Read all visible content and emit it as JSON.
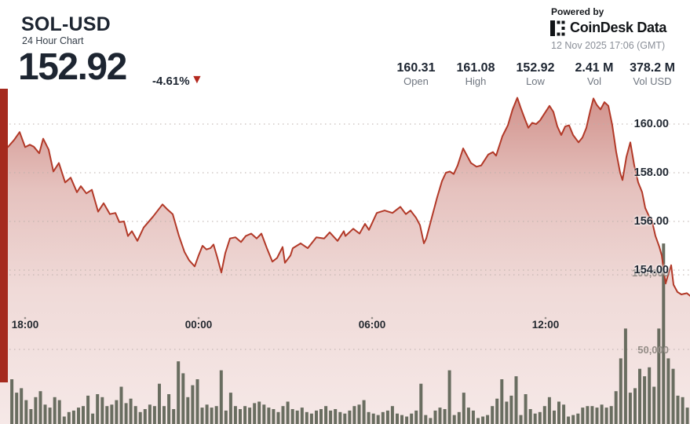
{
  "header": {
    "symbol": "SOL-USD",
    "subtitle": "24 Hour Chart",
    "price": "152.92",
    "change": "-4.61%",
    "down_arrow": "▼",
    "powered_by": "Powered by",
    "brand": "CoinDesk Data",
    "timestamp": "12 Nov 2025 17:06 (GMT)"
  },
  "stats": [
    {
      "value": "160.31",
      "label": "Open"
    },
    {
      "value": "161.08",
      "label": "High"
    },
    {
      "value": "152.92",
      "label": "Low"
    },
    {
      "value": "2.41 M",
      "label": "Vol"
    },
    {
      "value": "378.2 M",
      "label": "Vol USD"
    }
  ],
  "colors": {
    "dark_navy": "#1d2531",
    "line_red": "#b23928",
    "fill_red": "#a93226",
    "marker_red": "#a52a1e",
    "arrow_red": "#b3281e",
    "volume_bar": "#5e6355",
    "grid": "#b9aeaa",
    "gray_text": "#6f7680"
  },
  "chart_data": {
    "type": "area",
    "title": "SOL-USD 24 Hour Chart",
    "open": 160.31,
    "high": 161.08,
    "low": 152.92,
    "last": 152.92,
    "change_pct": -4.61,
    "volume": "2.41 M",
    "volume_usd": "378.2 M",
    "x_ticks": [
      "18:00",
      "00:00",
      "06:00",
      "12:00"
    ],
    "price_axis_labels": [
      "160.00",
      "158.00",
      "156.00",
      "154.00"
    ],
    "price_gridlines": [
      160,
      158,
      156,
      154
    ],
    "volume_axis_labels": [
      "100,000",
      "50,000"
    ],
    "volume_gridlines": [
      100000,
      50000
    ],
    "price_ylim": [
      152.5,
      161.5
    ],
    "volume_ylim": [
      0,
      125000
    ],
    "legend": "none",
    "grid": "dotted",
    "price_series": [
      [
        0,
        159.0
      ],
      [
        10,
        159.05
      ],
      [
        18,
        159.35
      ],
      [
        25,
        159.67
      ],
      [
        32,
        159.05
      ],
      [
        38,
        159.15
      ],
      [
        43,
        159.07
      ],
      [
        50,
        158.8
      ],
      [
        55,
        159.4
      ],
      [
        62,
        158.95
      ],
      [
        68,
        158.05
      ],
      [
        75,
        158.4
      ],
      [
        83,
        157.6
      ],
      [
        90,
        157.8
      ],
      [
        98,
        157.2
      ],
      [
        103,
        157.45
      ],
      [
        110,
        157.15
      ],
      [
        117,
        157.3
      ],
      [
        125,
        156.4
      ],
      [
        132,
        156.75
      ],
      [
        140,
        156.3
      ],
      [
        147,
        156.35
      ],
      [
        152,
        155.97
      ],
      [
        158,
        156.0
      ],
      [
        163,
        155.4
      ],
      [
        168,
        155.6
      ],
      [
        175,
        155.2
      ],
      [
        183,
        155.75
      ],
      [
        195,
        156.2
      ],
      [
        207,
        156.7
      ],
      [
        213,
        156.5
      ],
      [
        220,
        156.3
      ],
      [
        228,
        155.4
      ],
      [
        235,
        154.75
      ],
      [
        241,
        154.4
      ],
      [
        248,
        154.15
      ],
      [
        253,
        154.6
      ],
      [
        258,
        155.0
      ],
      [
        263,
        154.85
      ],
      [
        268,
        154.9
      ],
      [
        272,
        155.05
      ],
      [
        277,
        154.5
      ],
      [
        282,
        153.9
      ],
      [
        287,
        154.7
      ],
      [
        293,
        155.3
      ],
      [
        300,
        155.35
      ],
      [
        307,
        155.15
      ],
      [
        313,
        155.4
      ],
      [
        320,
        155.5
      ],
      [
        327,
        155.3
      ],
      [
        333,
        155.5
      ],
      [
        340,
        154.9
      ],
      [
        347,
        154.35
      ],
      [
        353,
        154.5
      ],
      [
        360,
        154.95
      ],
      [
        363,
        154.3
      ],
      [
        370,
        154.6
      ],
      [
        373,
        154.9
      ],
      [
        383,
        155.1
      ],
      [
        392,
        154.9
      ],
      [
        403,
        155.35
      ],
      [
        413,
        155.3
      ],
      [
        420,
        155.55
      ],
      [
        430,
        155.2
      ],
      [
        438,
        155.6
      ],
      [
        440,
        155.4
      ],
      [
        450,
        155.7
      ],
      [
        458,
        155.5
      ],
      [
        465,
        155.9
      ],
      [
        470,
        155.65
      ],
      [
        480,
        156.35
      ],
      [
        490,
        156.45
      ],
      [
        500,
        156.35
      ],
      [
        510,
        156.6
      ],
      [
        517,
        156.3
      ],
      [
        523,
        156.45
      ],
      [
        530,
        156.15
      ],
      [
        535,
        155.85
      ],
      [
        540,
        155.1
      ],
      [
        543,
        155.3
      ],
      [
        550,
        156.15
      ],
      [
        557,
        157.0
      ],
      [
        563,
        157.65
      ],
      [
        568,
        158.0
      ],
      [
        573,
        158.05
      ],
      [
        578,
        157.95
      ],
      [
        583,
        158.3
      ],
      [
        590,
        159.0
      ],
      [
        595,
        158.7
      ],
      [
        600,
        158.4
      ],
      [
        607,
        158.25
      ],
      [
        613,
        158.3
      ],
      [
        622,
        158.75
      ],
      [
        628,
        158.85
      ],
      [
        632,
        158.7
      ],
      [
        640,
        159.5
      ],
      [
        647,
        159.95
      ],
      [
        653,
        160.6
      ],
      [
        659,
        161.08
      ],
      [
        663,
        160.7
      ],
      [
        667,
        160.35
      ],
      [
        673,
        159.85
      ],
      [
        678,
        160.05
      ],
      [
        683,
        160.0
      ],
      [
        688,
        160.15
      ],
      [
        693,
        160.4
      ],
      [
        700,
        160.75
      ],
      [
        705,
        160.5
      ],
      [
        710,
        159.9
      ],
      [
        715,
        159.55
      ],
      [
        720,
        159.9
      ],
      [
        725,
        159.95
      ],
      [
        730,
        159.55
      ],
      [
        737,
        159.25
      ],
      [
        742,
        159.45
      ],
      [
        747,
        159.85
      ],
      [
        752,
        160.55
      ],
      [
        756,
        161.05
      ],
      [
        760,
        160.8
      ],
      [
        765,
        160.6
      ],
      [
        770,
        160.9
      ],
      [
        775,
        160.75
      ],
      [
        780,
        159.95
      ],
      [
        785,
        158.85
      ],
      [
        790,
        158.0
      ],
      [
        793,
        157.7
      ],
      [
        798,
        158.65
      ],
      [
        803,
        159.25
      ],
      [
        808,
        158.3
      ],
      [
        813,
        157.6
      ],
      [
        818,
        157.2
      ],
      [
        822,
        156.55
      ],
      [
        827,
        156.2
      ],
      [
        830,
        156.1
      ],
      [
        835,
        155.4
      ],
      [
        840,
        154.95
      ],
      [
        843,
        154.6
      ],
      [
        848,
        153.45
      ],
      [
        851,
        153.8
      ],
      [
        855,
        154.2
      ],
      [
        858,
        153.4
      ],
      [
        863,
        153.1
      ],
      [
        868,
        153.0
      ],
      [
        875,
        153.05
      ],
      [
        879,
        152.95
      ]
    ],
    "volume_series_k": [
      0,
      0,
      30,
      21,
      24,
      16,
      10,
      18,
      22,
      13,
      11,
      18,
      16,
      5,
      8,
      9,
      11,
      12,
      19,
      7,
      20,
      18,
      12,
      13,
      16,
      25,
      14,
      17,
      12,
      8,
      10,
      13,
      12,
      27,
      12,
      20,
      10,
      42,
      34,
      18,
      26,
      30,
      11,
      13,
      11,
      12,
      36,
      9,
      21,
      12,
      10,
      12,
      11,
      14,
      15,
      13,
      11,
      10,
      8,
      12,
      15,
      10,
      9,
      11,
      8,
      7,
      9,
      10,
      12,
      9,
      10,
      8,
      7,
      9,
      12,
      13,
      16,
      8,
      7,
      6,
      8,
      9,
      12,
      7,
      6,
      5,
      7,
      9,
      27,
      6,
      4,
      9,
      11,
      10,
      36,
      6,
      8,
      21,
      11,
      9,
      4,
      5,
      6,
      12,
      17,
      30,
      15,
      19,
      32,
      6,
      20,
      10,
      7,
      8,
      12,
      18,
      9,
      15,
      13,
      5,
      6,
      7,
      11,
      12,
      12,
      11,
      13,
      11,
      12,
      22,
      44,
      64,
      21,
      24,
      37,
      32,
      38,
      25,
      64,
      121,
      44,
      37,
      19,
      18,
      11,
      3
    ]
  }
}
